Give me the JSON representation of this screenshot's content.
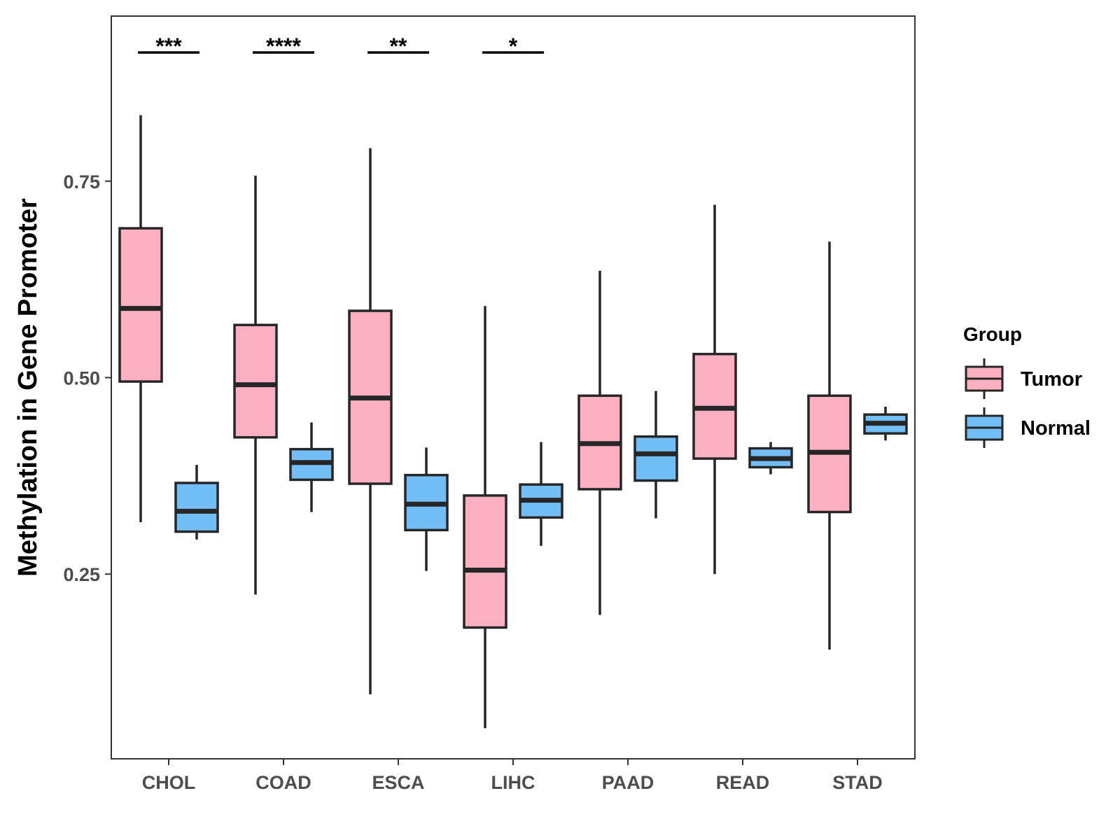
{
  "chart_data": {
    "type": "boxplot",
    "title": "",
    "xlabel": "",
    "ylabel": "Methylation in Gene Promoter",
    "ylim": [
      0.015,
      0.96
    ],
    "yticks": [
      0.25,
      0.5,
      0.75
    ],
    "ytick_labels": [
      "0.25",
      "0.50",
      "0.75"
    ],
    "categories": [
      "CHOL",
      "COAD",
      "ESCA",
      "LIHC",
      "PAAD",
      "READ",
      "STAD"
    ],
    "legend": {
      "title": "Group",
      "position": "right",
      "items": [
        {
          "name": "Tumor",
          "color": "#FCB0C1"
        },
        {
          "name": "Normal",
          "color": "#74BEF7"
        }
      ]
    },
    "series": [
      {
        "name": "Tumor",
        "color": "#FCB0C1",
        "boxes": [
          {
            "min": 0.316,
            "q1": 0.495,
            "median": 0.588,
            "q3": 0.69,
            "max": 0.834
          },
          {
            "min": 0.224,
            "q1": 0.424,
            "median": 0.491,
            "q3": 0.567,
            "max": 0.757
          },
          {
            "min": 0.097,
            "q1": 0.365,
            "median": 0.474,
            "q3": 0.585,
            "max": 0.792
          },
          {
            "min": 0.054,
            "q1": 0.182,
            "median": 0.255,
            "q3": 0.35,
            "max": 0.591
          },
          {
            "min": 0.198,
            "q1": 0.358,
            "median": 0.416,
            "q3": 0.477,
            "max": 0.636
          },
          {
            "min": 0.25,
            "q1": 0.397,
            "median": 0.461,
            "q3": 0.53,
            "max": 0.72
          },
          {
            "min": 0.154,
            "q1": 0.329,
            "median": 0.405,
            "q3": 0.477,
            "max": 0.673
          }
        ]
      },
      {
        "name": "Normal",
        "color": "#74BEF7",
        "boxes": [
          {
            "min": 0.294,
            "q1": 0.304,
            "median": 0.33,
            "q3": 0.366,
            "max": 0.389
          },
          {
            "min": 0.329,
            "q1": 0.37,
            "median": 0.392,
            "q3": 0.409,
            "max": 0.443
          },
          {
            "min": 0.254,
            "q1": 0.306,
            "median": 0.339,
            "q3": 0.376,
            "max": 0.411
          },
          {
            "min": 0.286,
            "q1": 0.322,
            "median": 0.344,
            "q3": 0.364,
            "max": 0.418
          },
          {
            "min": 0.321,
            "q1": 0.369,
            "median": 0.403,
            "q3": 0.425,
            "max": 0.483
          },
          {
            "min": 0.377,
            "q1": 0.386,
            "median": 0.397,
            "q3": 0.41,
            "max": 0.418
          },
          {
            "min": 0.42,
            "q1": 0.429,
            "median": 0.442,
            "q3": 0.453,
            "max": 0.463
          }
        ]
      }
    ],
    "significance": [
      {
        "category": "CHOL",
        "label": "***"
      },
      {
        "category": "COAD",
        "label": "****"
      },
      {
        "category": "ESCA",
        "label": "**"
      },
      {
        "category": "LIHC",
        "label": "*"
      }
    ]
  }
}
